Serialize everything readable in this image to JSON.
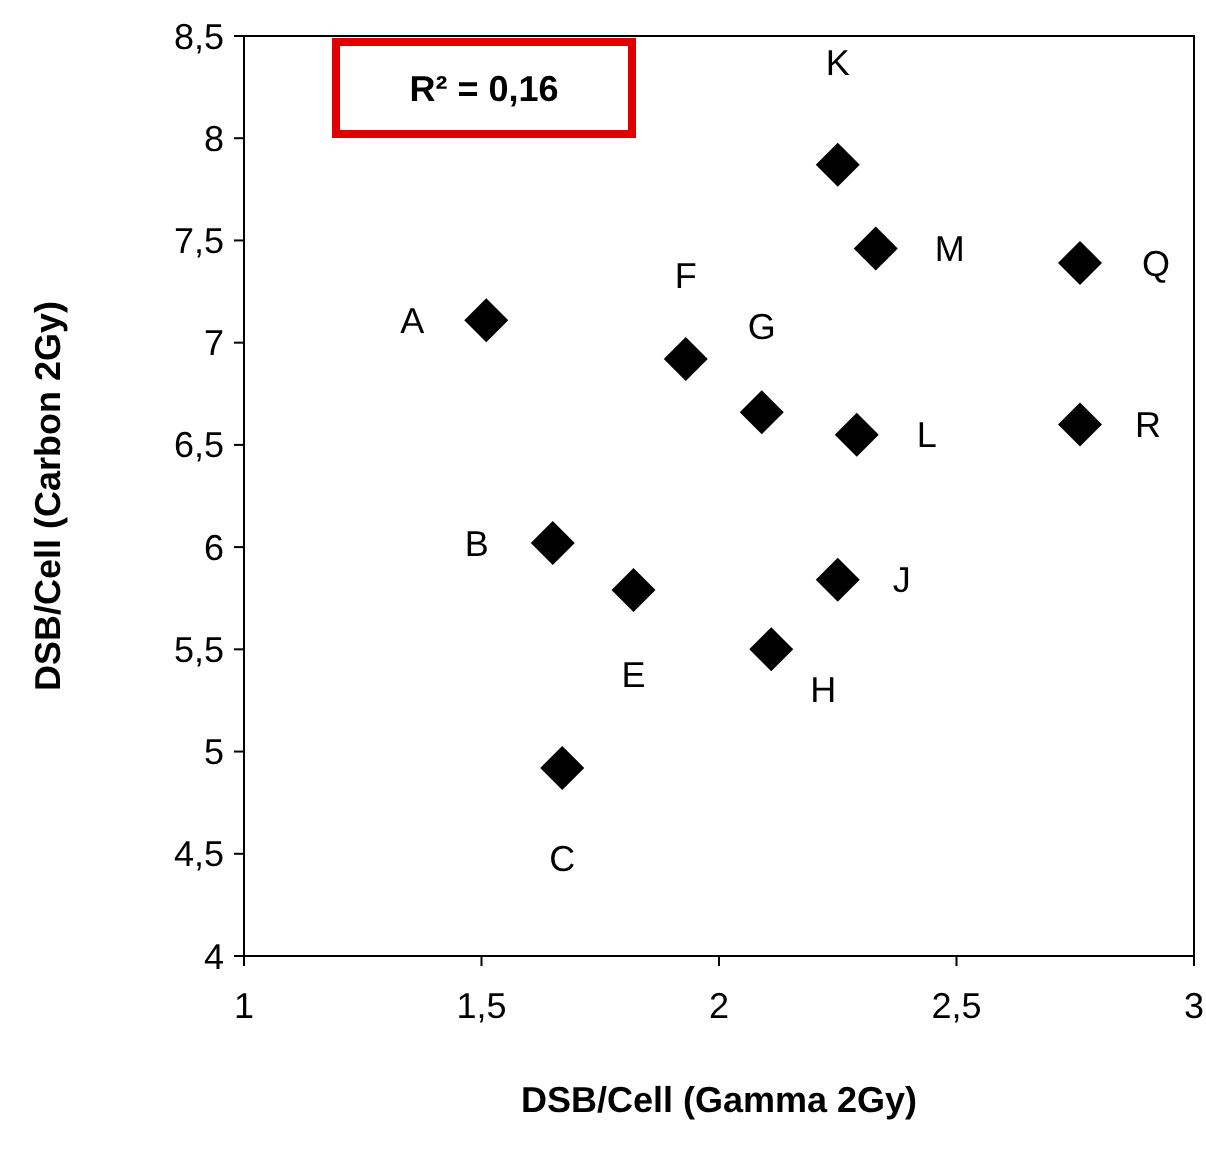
{
  "chart_data": {
    "type": "scatter",
    "xlabel": "DSB/Cell (Gamma 2Gy)",
    "ylabel": "DSB/Cell (Carbon 2Gy)",
    "x": [
      1.51,
      1.65,
      1.67,
      1.82,
      1.93,
      2.09,
      2.11,
      2.25,
      2.25,
      2.29,
      2.33,
      2.76,
      2.76
    ],
    "values": [
      7.11,
      6.02,
      4.92,
      5.79,
      6.92,
      6.66,
      5.5,
      5.84,
      7.87,
      6.55,
      7.46,
      7.39,
      6.6
    ],
    "color": "#000000",
    "marker": "diamond",
    "grid": false,
    "xlim": [
      1,
      3
    ],
    "xticks": [
      1,
      {
        "value": 1.5,
        "label": "1,5"
      },
      2,
      {
        "value": 2.5,
        "label": "2,5"
      },
      3
    ],
    "ylim": [
      4,
      8.5
    ],
    "yticks": [
      4,
      {
        "value": 4.5,
        "label": "4,5"
      },
      5,
      {
        "value": 5.5,
        "label": "5,5"
      },
      6,
      {
        "value": 6.5,
        "label": "6,5"
      },
      7,
      {
        "value": 7.5,
        "label": "7,5"
      },
      8,
      {
        "value": 8.5,
        "label": "8,5"
      }
    ],
    "annotations": [
      {
        "text": "A",
        "x": 1.51,
        "y": 7.11
      },
      {
        "text": "B",
        "x": 1.65,
        "y": 6.02
      },
      {
        "text": "C",
        "x": 1.67,
        "y": 4.92
      },
      {
        "text": "E",
        "x": 1.82,
        "y": 5.79
      },
      {
        "text": "F",
        "x": 1.93,
        "y": 6.92
      },
      {
        "text": "G",
        "x": 2.09,
        "y": 6.66
      },
      {
        "text": "H",
        "x": 2.11,
        "y": 5.5
      },
      {
        "text": "J",
        "x": 2.25,
        "y": 5.84
      },
      {
        "text": "K",
        "x": 2.25,
        "y": 7.87
      },
      {
        "text": "L",
        "x": 2.29,
        "y": 6.55
      },
      {
        "text": "M",
        "x": 2.33,
        "y": 7.46
      },
      {
        "text": "Q",
        "x": 2.76,
        "y": 7.39
      },
      {
        "text": "R",
        "x": 2.76,
        "y": 6.6
      },
      "R² = 0,16"
    ]
  }
}
